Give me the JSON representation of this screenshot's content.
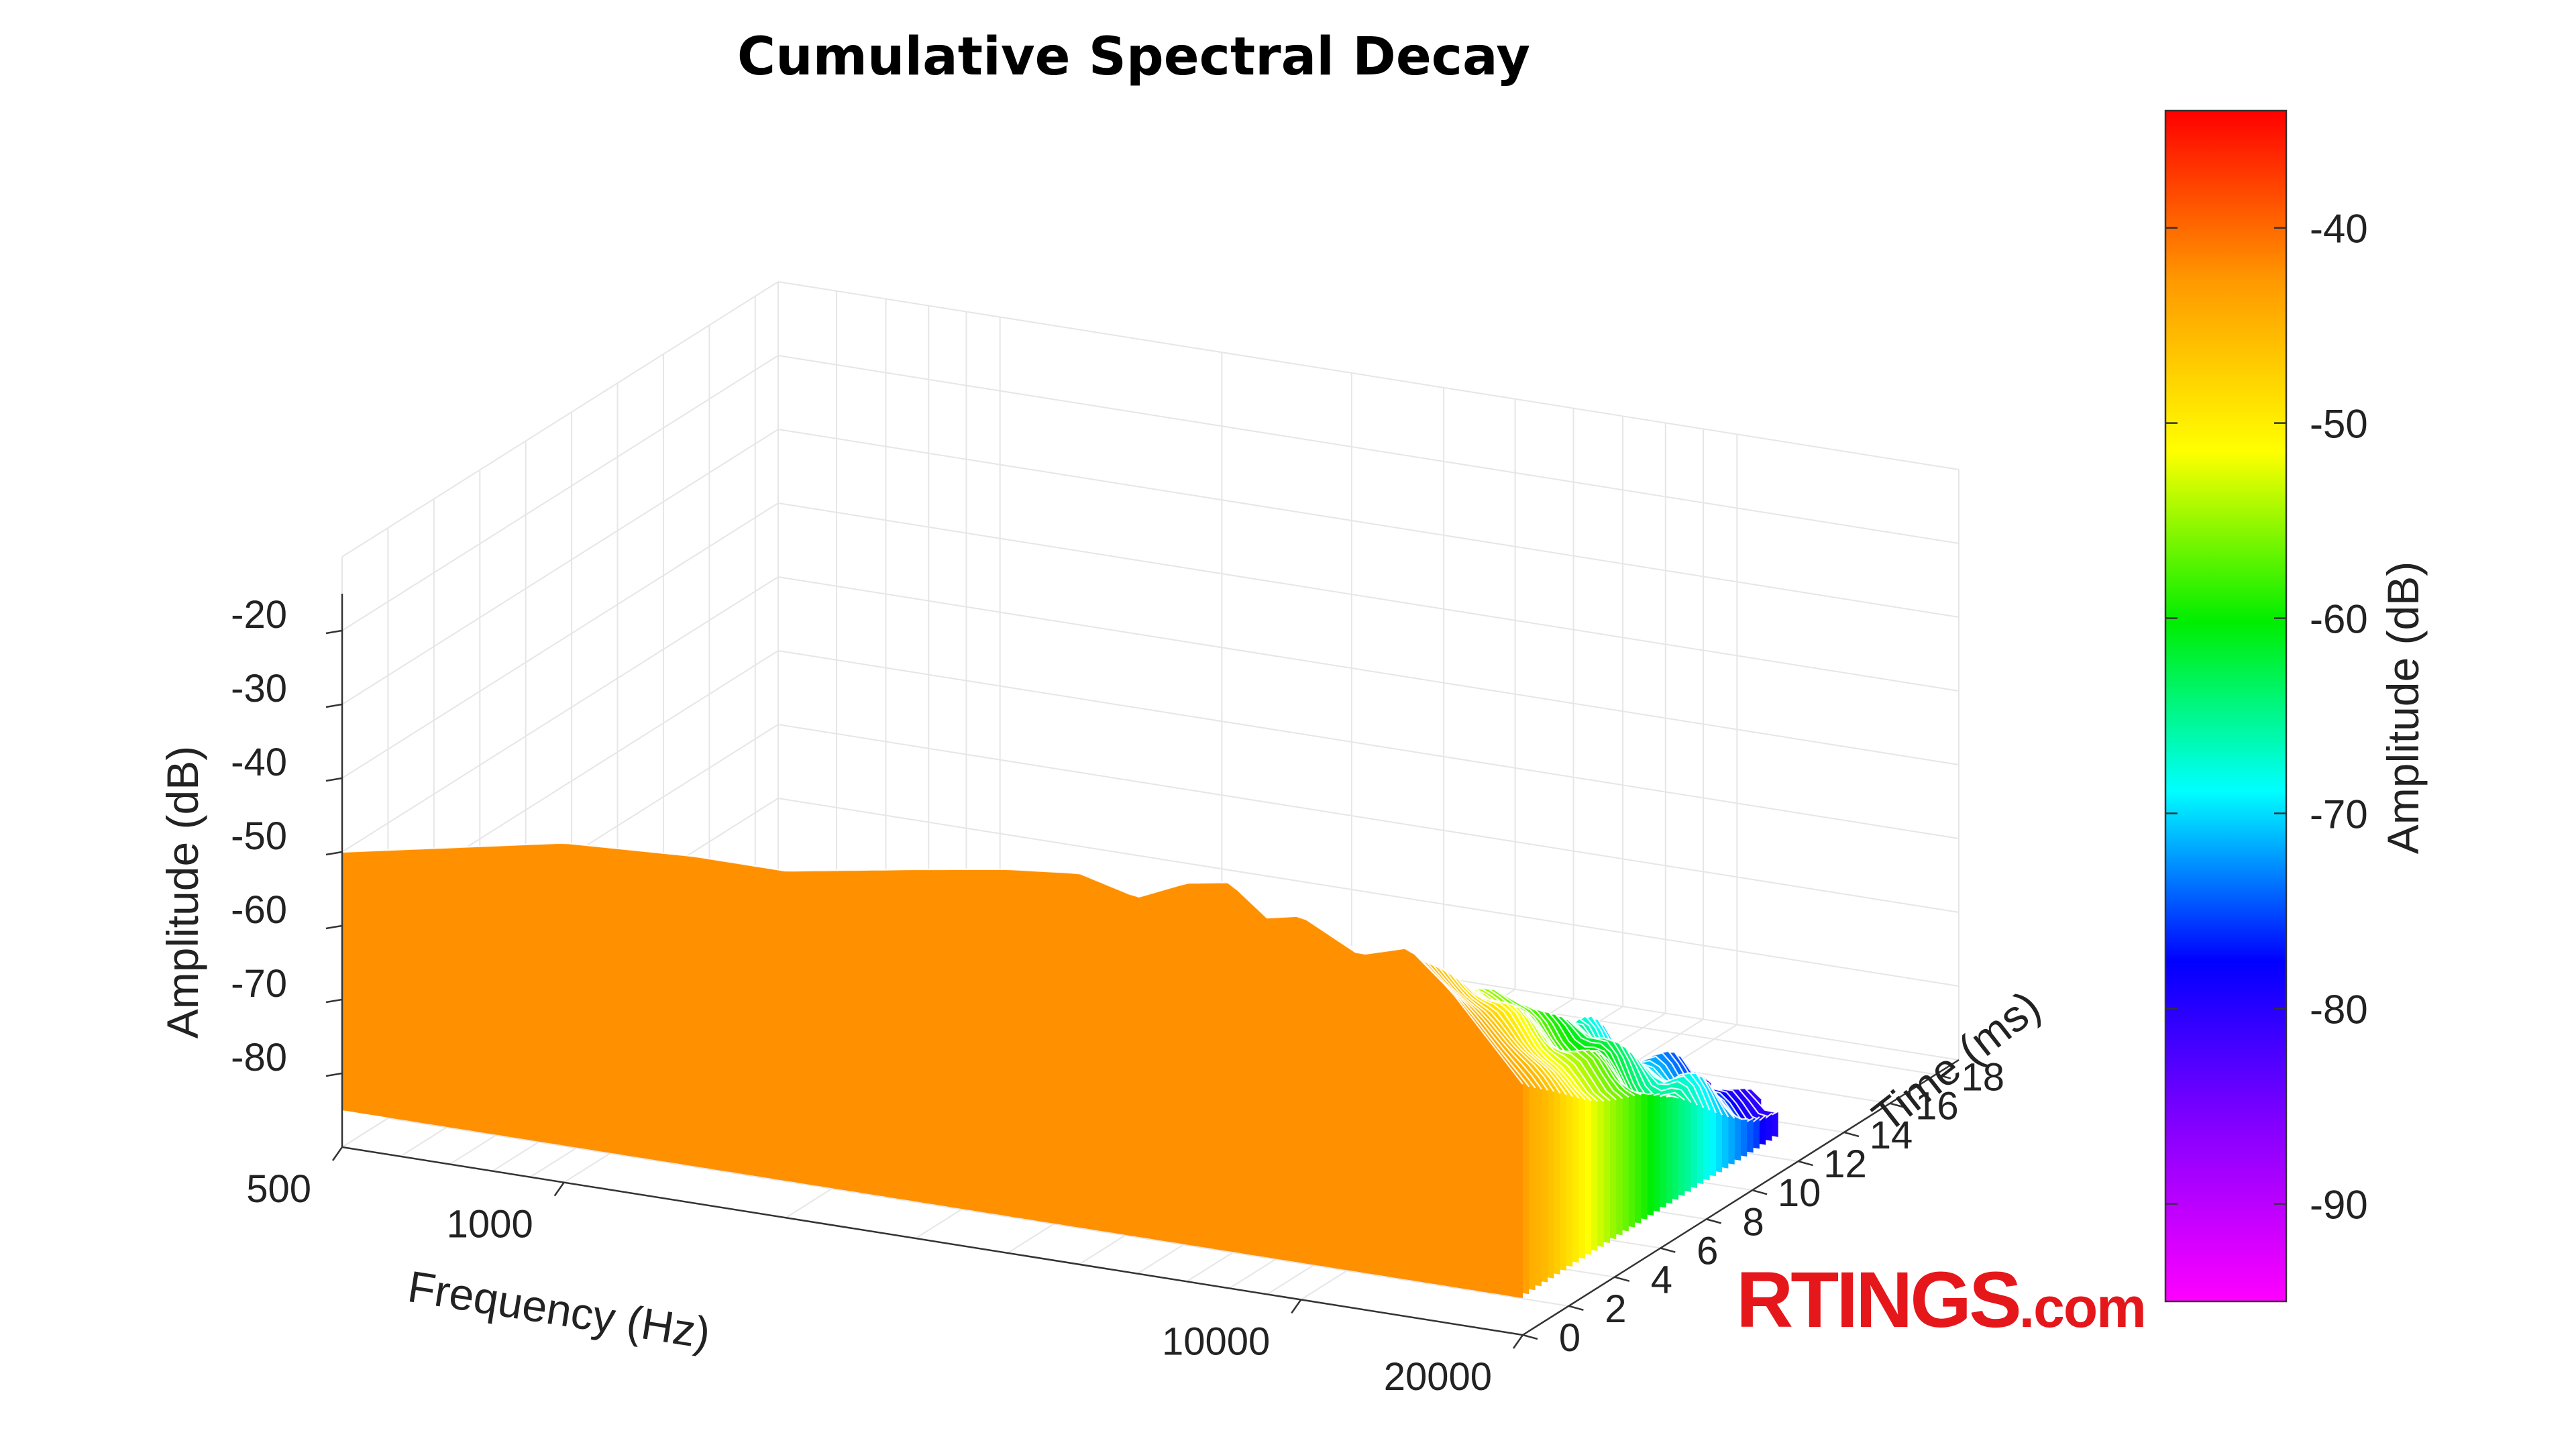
{
  "chart_data": {
    "type": "waterfall-3d",
    "title": "Cumulative Spectral Decay",
    "xlabel": "Frequency (Hz)",
    "ylabel": "Time (ms)",
    "zlabel": "Amplitude (dB)",
    "colorbar_label": "Amplitude (dB)",
    "x_scale": "log",
    "x_ticks": [
      "500",
      "1000",
      "10000",
      "20000"
    ],
    "x_tick_values": [
      500,
      1000,
      10000,
      20000
    ],
    "xlim": [
      500,
      20000
    ],
    "y_ticks": [
      "0",
      "2",
      "4",
      "6",
      "8",
      "10",
      "12",
      "14",
      "16",
      "18"
    ],
    "y_tick_values": [
      0,
      2,
      4,
      6,
      8,
      10,
      12,
      14,
      16,
      18
    ],
    "ylim": [
      0,
      19
    ],
    "z_ticks": [
      "-20",
      "-30",
      "-40",
      "-50",
      "-60",
      "-70",
      "-80"
    ],
    "z_tick_values": [
      -20,
      -30,
      -40,
      -50,
      -60,
      -70,
      -80
    ],
    "zlim": [
      -90,
      -10
    ],
    "colorbar_ticks": [
      "-40",
      "-50",
      "-60",
      "-70",
      "-80",
      "-90"
    ],
    "colorbar_tick_values": [
      -40,
      -50,
      -60,
      -70,
      -80,
      -90
    ],
    "clim": [
      -95,
      -34
    ],
    "colormap": [
      "#ff00ff",
      "#8800ff",
      "#0000ff",
      "#00ffff",
      "#00ee00",
      "#ffff00",
      "#ff9900",
      "#ff0000"
    ],
    "grid": true,
    "surface_front_slice": {
      "time_ms": 0,
      "frequency_hz": [
        500,
        1000,
        1500,
        2000,
        3000,
        4000,
        5000,
        6000,
        7000,
        8000,
        9000,
        10000,
        12000,
        14000,
        16000,
        20000
      ],
      "amplitude_db": [
        -50,
        -44,
        -43,
        -43,
        -40,
        -38,
        -37,
        -39,
        -36,
        -35,
        -39,
        -38,
        -42,
        -40,
        -45,
        -56
      ]
    },
    "decay_floor_db": -90
  },
  "brand": {
    "main": "RTINGS",
    "suffix": ".com",
    "color": "#e5171b"
  }
}
